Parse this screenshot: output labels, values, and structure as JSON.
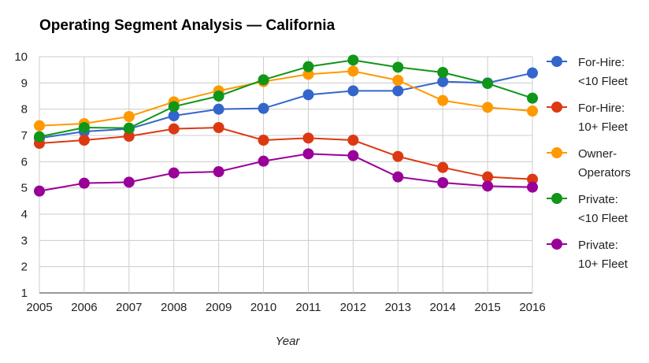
{
  "chart_data": {
    "type": "line",
    "title": "Operating Segment Analysis — California",
    "xlabel": "Year",
    "ylabel": "",
    "x": [
      "2005",
      "2006",
      "2007",
      "2008",
      "2009",
      "2010",
      "2011",
      "2012",
      "2013",
      "2014",
      "2015",
      "2016"
    ],
    "ylim": [
      1,
      10
    ],
    "yticks": [
      1,
      2,
      3,
      4,
      5,
      6,
      7,
      8,
      9,
      10
    ],
    "grid": true,
    "legend_position": "right",
    "series": [
      {
        "name": "For-Hire: <10 Fleet",
        "legend_lines": [
          "For-Hire:",
          "<10 Fleet"
        ],
        "color": "#3366cc",
        "values": [
          6.9,
          7.15,
          7.25,
          7.75,
          8.0,
          8.03,
          8.55,
          8.7,
          8.7,
          9.05,
          9.0,
          9.38
        ]
      },
      {
        "name": "For-Hire: 10+ Fleet",
        "legend_lines": [
          "For-Hire:",
          "10+ Fleet"
        ],
        "color": "#dc3912",
        "values": [
          6.7,
          6.82,
          6.97,
          7.25,
          7.3,
          6.82,
          6.9,
          6.82,
          6.2,
          5.78,
          5.42,
          5.33
        ]
      },
      {
        "name": "Owner-Operators",
        "legend_lines": [
          "Owner-",
          "Operators"
        ],
        "color": "#ff9900",
        "values": [
          7.37,
          7.45,
          7.72,
          8.28,
          8.7,
          9.05,
          9.33,
          9.45,
          9.1,
          8.33,
          8.07,
          7.93
        ]
      },
      {
        "name": "Private: <10 Fleet",
        "legend_lines": [
          "Private:",
          "<10 Fleet"
        ],
        "color": "#109618",
        "values": [
          6.95,
          7.3,
          7.28,
          8.1,
          8.5,
          9.12,
          9.62,
          9.87,
          9.6,
          9.4,
          8.98,
          8.42
        ]
      },
      {
        "name": "Private: 10+ Fleet",
        "legend_lines": [
          "Private:",
          "10+ Fleet"
        ],
        "color": "#990099",
        "values": [
          4.88,
          5.18,
          5.22,
          5.57,
          5.62,
          6.02,
          6.3,
          6.23,
          5.42,
          5.2,
          5.07,
          5.03
        ]
      }
    ]
  }
}
